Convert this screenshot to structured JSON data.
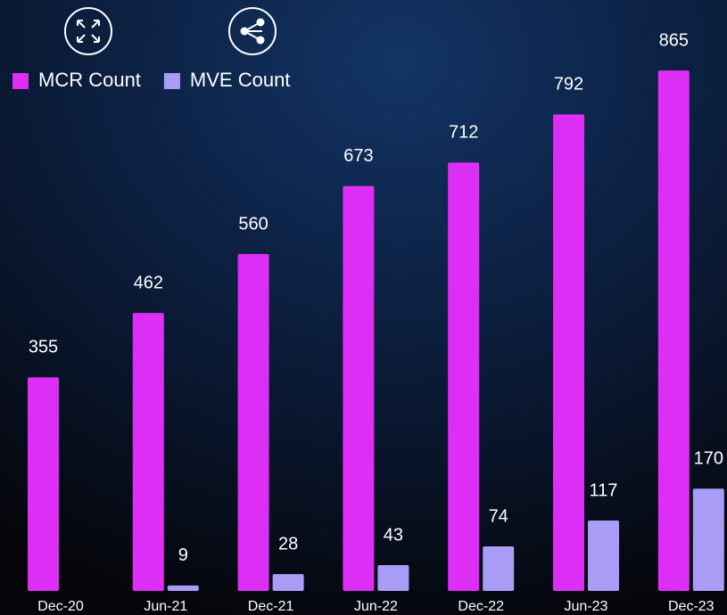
{
  "chart_data": {
    "type": "bar",
    "categories": [
      "Dec-20",
      "Jun-21",
      "Dec-21",
      "Jun-22",
      "Dec-22",
      "Jun-23",
      "Dec-23"
    ],
    "series": [
      {
        "name": "MCR Count",
        "color": "#dd2ef5",
        "values": [
          355,
          462,
          560,
          673,
          712,
          792,
          865
        ]
      },
      {
        "name": "MVE Count",
        "color": "#a99cf7",
        "values": [
          null,
          9,
          28,
          43,
          74,
          117,
          170
        ]
      }
    ],
    "ylim": [
      0,
      900
    ],
    "legend": "top-left"
  }
}
